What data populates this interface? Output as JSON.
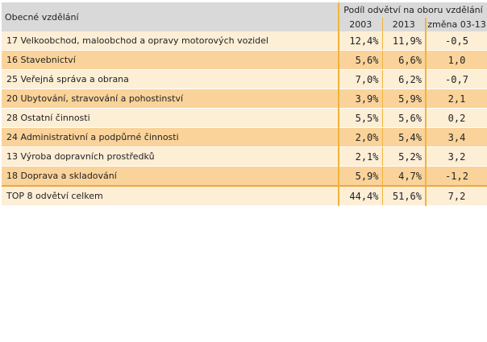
{
  "header": {
    "label_column": "Obecné vzdělání",
    "group_title": "Podíl odvětví na oboru vzdělání",
    "col_2003": "2003",
    "col_2013": "2013",
    "col_change": "změna 03-13"
  },
  "rows": [
    {
      "label": "17 Velkoobchod, maloobchod a opravy motorových vozidel",
      "v2003": "12,4%",
      "v2013": "11,9%",
      "change": "-0,5"
    },
    {
      "label": "16 Stavebnictví",
      "v2003": "5,6%",
      "v2013": "6,6%",
      "change": "1,0"
    },
    {
      "label": "25 Veřejná správa a obrana",
      "v2003": "7,0%",
      "v2013": "6,2%",
      "change": "-0,7"
    },
    {
      "label": "20 Ubytování, stravování a pohostinství",
      "v2003": "3,9%",
      "v2013": "5,9%",
      "change": "2,1"
    },
    {
      "label": "28 Ostatní činnosti",
      "v2003": "5,5%",
      "v2013": "5,6%",
      "change": "0,2"
    },
    {
      "label": "24 Administrativní a podpůrné činnosti",
      "v2003": "2,0%",
      "v2013": "5,4%",
      "change": "3,4"
    },
    {
      "label": "13 Výroba dopravních prostředků",
      "v2003": "2,1%",
      "v2013": "5,2%",
      "change": "3,2"
    },
    {
      "label": "18 Doprava a skladování",
      "v2003": "5,9%",
      "v2013": "4,7%",
      "change": "-1,2"
    }
  ],
  "total": {
    "label": "TOP 8 odvětví celkem",
    "v2003": "44,4%",
    "v2013": "51,6%",
    "change": "7,2"
  },
  "colors": {
    "header_bg": "#d9d9d9",
    "row_light": "#fdeed6",
    "row_dark": "#fad39a",
    "divider": "#f0b43c"
  }
}
